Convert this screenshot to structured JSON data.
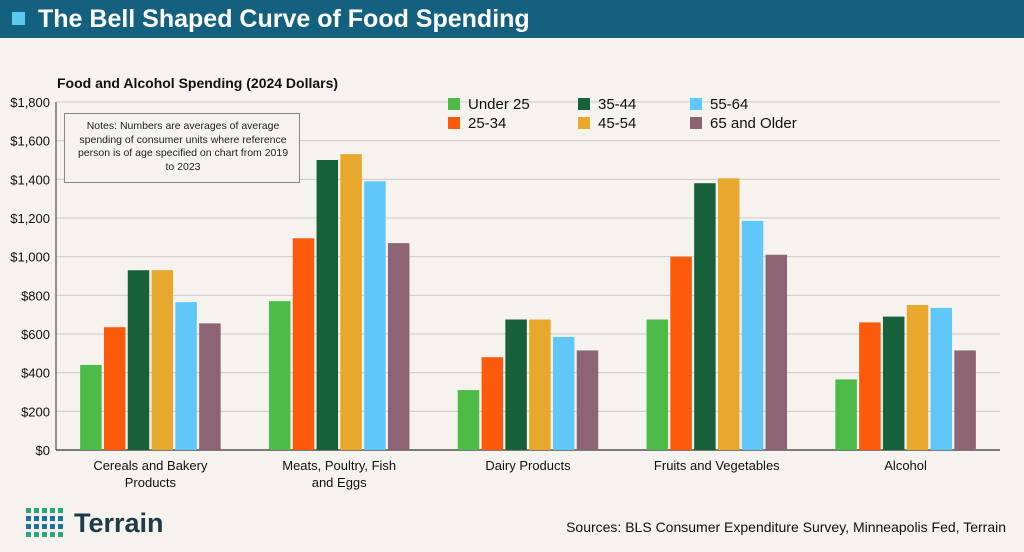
{
  "header": {
    "title": "The Bell Shaped Curve of Food Spending"
  },
  "notes": "Notes: Numbers are averages of average spending of consumer units where reference person is of age specified on chart from 2019 to 2023",
  "sources": "Sources: BLS Consumer Expenditure Survey, Minneapolis Fed, Terrain",
  "logo": {
    "text": "Terrain"
  },
  "chart_data": {
    "type": "bar",
    "title": "Food and Alcohol Spending (2024 Dollars)",
    "xlabel": "",
    "ylabel": "",
    "ylim": [
      0,
      1800
    ],
    "yticks": [
      0,
      200,
      400,
      600,
      800,
      1000,
      1200,
      1400,
      1600,
      1800
    ],
    "ytick_labels": [
      "$0",
      "$200",
      "$400",
      "$600",
      "$800",
      "$1,000",
      "$1,200",
      "$1,400",
      "$1,600",
      "$1,800"
    ],
    "grid": true,
    "legend_position": "top-right",
    "categories": [
      [
        "Cereals and Bakery",
        "Products"
      ],
      [
        "Meats, Poultry, Fish",
        "and Eggs"
      ],
      [
        "Dairy Products"
      ],
      [
        "Fruits and Vegetables"
      ],
      [
        "Alcohol"
      ]
    ],
    "series": [
      {
        "name": "Under 25",
        "color": "#4cbb47",
        "values": [
          440,
          770,
          310,
          675,
          365
        ]
      },
      {
        "name": "25-34",
        "color": "#fa5a0a",
        "values": [
          635,
          1095,
          480,
          1000,
          660
        ]
      },
      {
        "name": "35-44",
        "color": "#17613a",
        "values": [
          930,
          1500,
          675,
          1380,
          690
        ]
      },
      {
        "name": "45-54",
        "color": "#e7a82d",
        "values": [
          930,
          1530,
          675,
          1405,
          750
        ]
      },
      {
        "name": "55-64",
        "color": "#5fc7f9",
        "values": [
          765,
          1390,
          585,
          1185,
          735
        ]
      },
      {
        "name": "65 and Older",
        "color": "#8d6474",
        "values": [
          655,
          1070,
          515,
          1010,
          515
        ]
      }
    ]
  }
}
